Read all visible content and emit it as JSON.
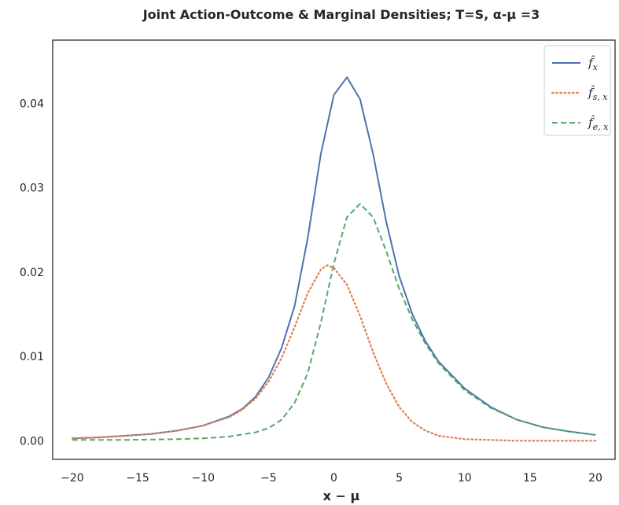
{
  "chart_data": {
    "type": "line",
    "title": "Joint Action-Outcome  & Marginal Densities; T=S, α-μ =3",
    "xlabel": "x − μ",
    "ylabel": "",
    "xlim": [
      -21.5,
      21.5
    ],
    "ylim": [
      -0.0022,
      0.0475
    ],
    "xticks": [
      -20,
      -15,
      -10,
      -5,
      0,
      5,
      10,
      15,
      20
    ],
    "xtick_labels": [
      "−20",
      "−15",
      "−10",
      "−5",
      "0",
      "5",
      "10",
      "15",
      "20"
    ],
    "yticks": [
      0.0,
      0.01,
      0.02,
      0.03,
      0.04
    ],
    "ytick_labels": [
      "0.00",
      "0.01",
      "0.02",
      "0.03",
      "0.04"
    ],
    "grid": false,
    "legend_position": "top-right",
    "series": [
      {
        "name": "f̂x",
        "legend_main": "f̂",
        "legend_sub": "x",
        "color": "#4c72b0",
        "style": "solid",
        "x": [
          -20,
          -18,
          -16,
          -14,
          -12,
          -10,
          -8,
          -7,
          -6,
          -5,
          -4,
          -3,
          -2,
          -1,
          0,
          1,
          2,
          3,
          4,
          5,
          6,
          7,
          8,
          10,
          12,
          14,
          16,
          18,
          20
        ],
        "y": [
          0.0003,
          0.0004,
          0.0006,
          0.0008,
          0.0012,
          0.0018,
          0.0029,
          0.0038,
          0.0052,
          0.0075,
          0.011,
          0.016,
          0.024,
          0.034,
          0.041,
          0.0431,
          0.0405,
          0.034,
          0.026,
          0.0195,
          0.015,
          0.0118,
          0.0094,
          0.0062,
          0.004,
          0.0025,
          0.0016,
          0.0011,
          0.0007
        ]
      },
      {
        "name": "f̂s, x",
        "legend_main": "f̂",
        "legend_sub": "s, x",
        "color": "#dd8452",
        "style": "dotted",
        "x": [
          -20,
          -18,
          -16,
          -14,
          -12,
          -10,
          -8,
          -7,
          -6,
          -5,
          -4,
          -3,
          -2,
          -1,
          -0.5,
          0,
          1,
          2,
          3,
          4,
          5,
          6,
          7,
          8,
          10,
          12,
          14,
          16,
          18,
          20
        ],
        "y": [
          0.0003,
          0.0004,
          0.0006,
          0.0008,
          0.0012,
          0.0018,
          0.0028,
          0.0037,
          0.005,
          0.007,
          0.0098,
          0.0135,
          0.0175,
          0.0203,
          0.0208,
          0.0205,
          0.0185,
          0.0148,
          0.0105,
          0.0068,
          0.004,
          0.0022,
          0.0012,
          0.0006,
          0.0002,
          0.0001,
          0.0,
          0.0,
          0.0,
          0.0
        ]
      },
      {
        "name": "f̂e, x",
        "legend_main": "f̂",
        "legend_sub": "e, x",
        "color": "#55a868",
        "style": "dashed",
        "x": [
          -20,
          -16,
          -12,
          -10,
          -8,
          -6,
          -5,
          -4,
          -3,
          -2,
          -1,
          0,
          1,
          2,
          3,
          4,
          5,
          6,
          7,
          8,
          10,
          12,
          14,
          16,
          18,
          20
        ],
        "y": [
          0.0001,
          0.0001,
          0.0002,
          0.0003,
          0.0005,
          0.001,
          0.0015,
          0.0025,
          0.0045,
          0.008,
          0.014,
          0.021,
          0.0265,
          0.0281,
          0.0265,
          0.0225,
          0.018,
          0.0144,
          0.0115,
          0.0092,
          0.006,
          0.0039,
          0.0025,
          0.0016,
          0.0011,
          0.0007
        ]
      }
    ]
  }
}
